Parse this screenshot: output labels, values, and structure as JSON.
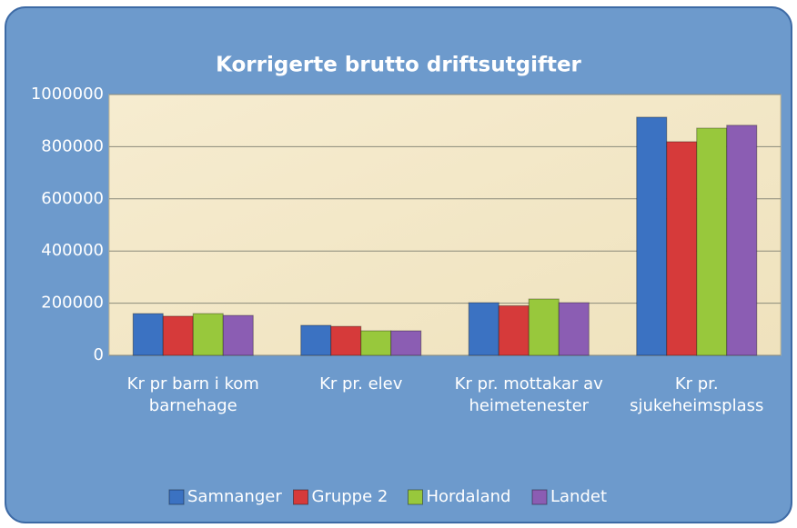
{
  "chart_data": {
    "type": "bar",
    "title": "Korrigerte brutto driftsutgifter",
    "categories": [
      "Kr pr barn i kom barnehage",
      "Kr pr. elev",
      "Kr pr. mottakar av heimetenester",
      "Kr pr. sjukeheimsplass"
    ],
    "series": [
      {
        "name": "Samnanger",
        "color": "#3b72c2",
        "values": [
          160000,
          115000,
          202000,
          913000
        ]
      },
      {
        "name": "Gruppe 2",
        "color": "#d63a3a",
        "values": [
          150000,
          111000,
          190000,
          819000
        ]
      },
      {
        "name": "Hordaland",
        "color": "#98c83c",
        "values": [
          160000,
          94000,
          216000,
          871000
        ]
      },
      {
        "name": "Landet",
        "color": "#8b5db3",
        "values": [
          153000,
          94000,
          202000,
          882000
        ]
      }
    ],
    "ylim": [
      0,
      1000000
    ],
    "yticks": [
      0,
      200000,
      400000,
      600000,
      800000,
      1000000
    ],
    "grid": true,
    "legend": "bottom"
  }
}
